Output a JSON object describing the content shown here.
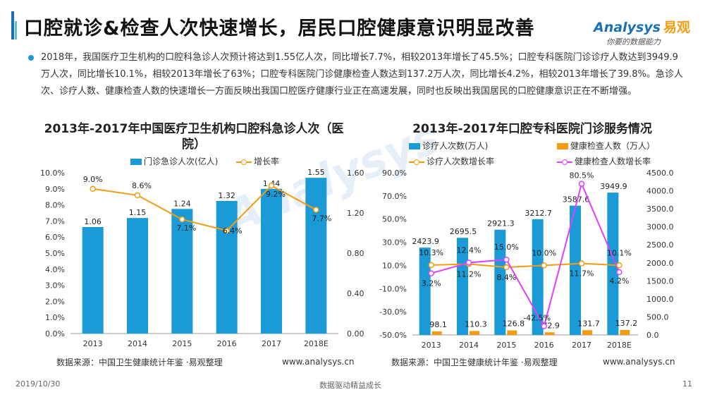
{
  "header": {
    "title": "口腔就诊&检查人次快速增长，居民口腔健康意识明显改善",
    "logo_brand": "Analysys",
    "logo_cn": "易观",
    "logo_slogan": "你要的数据能力"
  },
  "intro": "2018年，我国医疗卫生机构的口腔科急诊人次预计将达到1.55亿人次，同比增长7.7%，相较2013年增长了45.5%；口腔专科医院门诊诊疗人数达到3949.9万人次，同比增长10.1%，相较2013年增长了63%；口腔专科医院门诊健康检查人数达到137.2万人次，同比增长4.2%，相较2013年增长了39.8%。急诊人次、诊疗人数、健康检查人数的快速增长一方面反映出我国口腔医疗健康行业正在高速发展，同时也反映出我国居民的口腔健康意识正在不断增强。",
  "colors": {
    "accent": "#1a6fb5",
    "bar_blue": "#1a9ad6",
    "orange": "#f39c12",
    "pink": "#e040fb"
  },
  "chart_data": [
    {
      "type": "bar",
      "title": "2013年-2017年中国医疗卫生机构口腔科急诊人次（医院）",
      "categories": [
        "2013",
        "2014",
        "2015",
        "2016",
        "2017",
        "2018E"
      ],
      "series": [
        {
          "name": "门诊急诊人次(亿人)",
          "type": "bar",
          "axis": "right",
          "values": [
            1.06,
            1.15,
            1.24,
            1.32,
            1.44,
            1.55
          ],
          "labels": [
            "1.06",
            "1.15",
            "1.24",
            "1.32",
            "1.44",
            "1.55"
          ]
        },
        {
          "name": "增长率",
          "type": "line",
          "axis": "left",
          "values": [
            9.0,
            8.6,
            7.1,
            6.4,
            9.2,
            7.7
          ],
          "labels": [
            "9.0%",
            "8.6%",
            "7.1%",
            "6.4%",
            "9.2%",
            "7.7%"
          ]
        }
      ],
      "left_axis": {
        "ylim": [
          0,
          10
        ],
        "ticks": [
          "0.0%",
          "1.0%",
          "2.0%",
          "3.0%",
          "4.0%",
          "5.0%",
          "6.0%",
          "7.0%",
          "8.0%",
          "9.0%",
          "10.0%"
        ]
      },
      "right_axis": {
        "ylim": [
          0,
          1.6
        ],
        "ticks": [
          "0.00",
          "0.40",
          "0.80",
          "1.20",
          "1.60"
        ]
      },
      "source": "数据来源：中国卫生健康统计年鉴 ·易观整理",
      "website": "www.analysys.cn"
    },
    {
      "type": "bar",
      "title": "2013年-2017年口腔专科医院门诊服务情况",
      "categories": [
        "2013",
        "2014",
        "2015",
        "2016",
        "2017",
        "2018E"
      ],
      "series": [
        {
          "name": "诊疗人次数(万人)",
          "type": "bar",
          "axis": "right",
          "values": [
            2423.9,
            2695.5,
            2921.3,
            3212.7,
            3587.6,
            3949.9
          ],
          "labels": [
            "2423.9",
            "2695.5",
            "2921.3",
            "3212.7",
            "3587.6",
            "3949.9"
          ]
        },
        {
          "name": "健康检查人数（万人）",
          "type": "bar",
          "axis": "right",
          "values": [
            98.1,
            110.3,
            126.8,
            72.9,
            131.7,
            137.2
          ],
          "labels": [
            "98.1",
            "110.3",
            "126.8",
            "72.9",
            "131.7",
            "137.2"
          ]
        },
        {
          "name": "诊疗人次数增长率",
          "type": "line",
          "axis": "left",
          "values": [
            10.3,
            11.2,
            8.4,
            10.0,
            11.7,
            10.1
          ],
          "labels": [
            "10.3%",
            "11.2%",
            "8.4%",
            "10.0%",
            "11.7%",
            "10.1%"
          ]
        },
        {
          "name": "健康检查人数增长率",
          "type": "line",
          "axis": "left",
          "values": [
            3.2,
            12.4,
            15.0,
            -42.5,
            80.5,
            4.2
          ],
          "labels": [
            "3.2%",
            "12.4%",
            "15.0%",
            "-42.5%",
            "80.5%",
            "4.2%"
          ]
        }
      ],
      "left_axis": {
        "ylim": [
          -50,
          90
        ],
        "ticks": [
          "-50.0%",
          "-30.0%",
          "-10.0%",
          "10.0%",
          "30.0%",
          "50.0%",
          "70.0%",
          "90.0%"
        ]
      },
      "right_axis": {
        "ylim": [
          0,
          4500
        ],
        "ticks": [
          "0.0",
          "500.0",
          "1000.0",
          "1500.0",
          "2000.0",
          "2500.0",
          "3000.0",
          "3500.0",
          "4000.0",
          "4500.0"
        ]
      },
      "source": "数据来源：中国卫生健康统计年鉴 ·易观整理",
      "website": "www.analysys.cn"
    }
  ],
  "watermark": "Analysys",
  "footer": {
    "date": "2019/10/30",
    "center": "数据驱动精益成长",
    "page": "11"
  }
}
